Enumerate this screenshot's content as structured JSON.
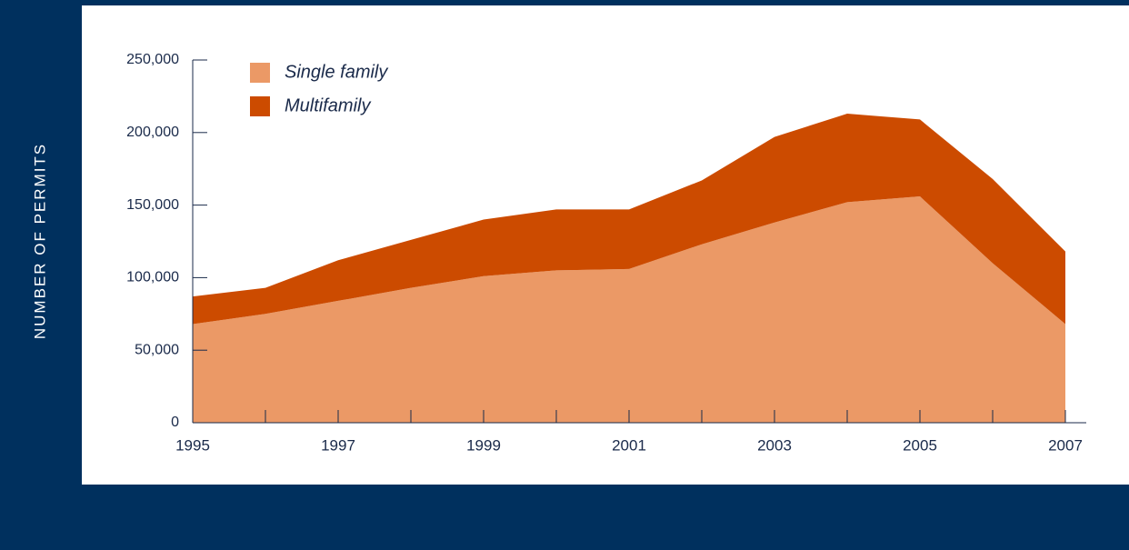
{
  "chart_data": {
    "type": "stacked-area",
    "y_axis_label": "NUMBER OF PERMITS",
    "x": [
      1995,
      1996,
      1997,
      1998,
      1999,
      2000,
      2001,
      2002,
      2003,
      2004,
      2005,
      2006,
      2007
    ],
    "series": [
      {
        "name": "Single family",
        "color": "#eb9966",
        "values": [
          68000,
          75000,
          84000,
          93000,
          101000,
          105000,
          106000,
          123000,
          138000,
          152000,
          156000,
          110000,
          68000
        ]
      },
      {
        "name": "Multifamily",
        "color": "#cc4b00",
        "values": [
          19000,
          18000,
          28000,
          33000,
          39000,
          42000,
          41000,
          44000,
          59000,
          61000,
          53000,
          58000,
          50000
        ]
      }
    ],
    "xlim": [
      1995,
      2007
    ],
    "xticks": [
      1995,
      1997,
      1999,
      2001,
      2003,
      2005,
      2007
    ],
    "ylim": [
      0,
      250000
    ],
    "yticks": [
      0,
      {
        "value": 50000,
        "label": "50,000"
      },
      {
        "value": 100000,
        "label": "100,000"
      },
      {
        "value": 150000,
        "label": "150,000"
      },
      {
        "value": 200000,
        "label": "200,000"
      },
      {
        "value": 250000,
        "label": "250,000"
      }
    ],
    "legend": "top-left"
  }
}
